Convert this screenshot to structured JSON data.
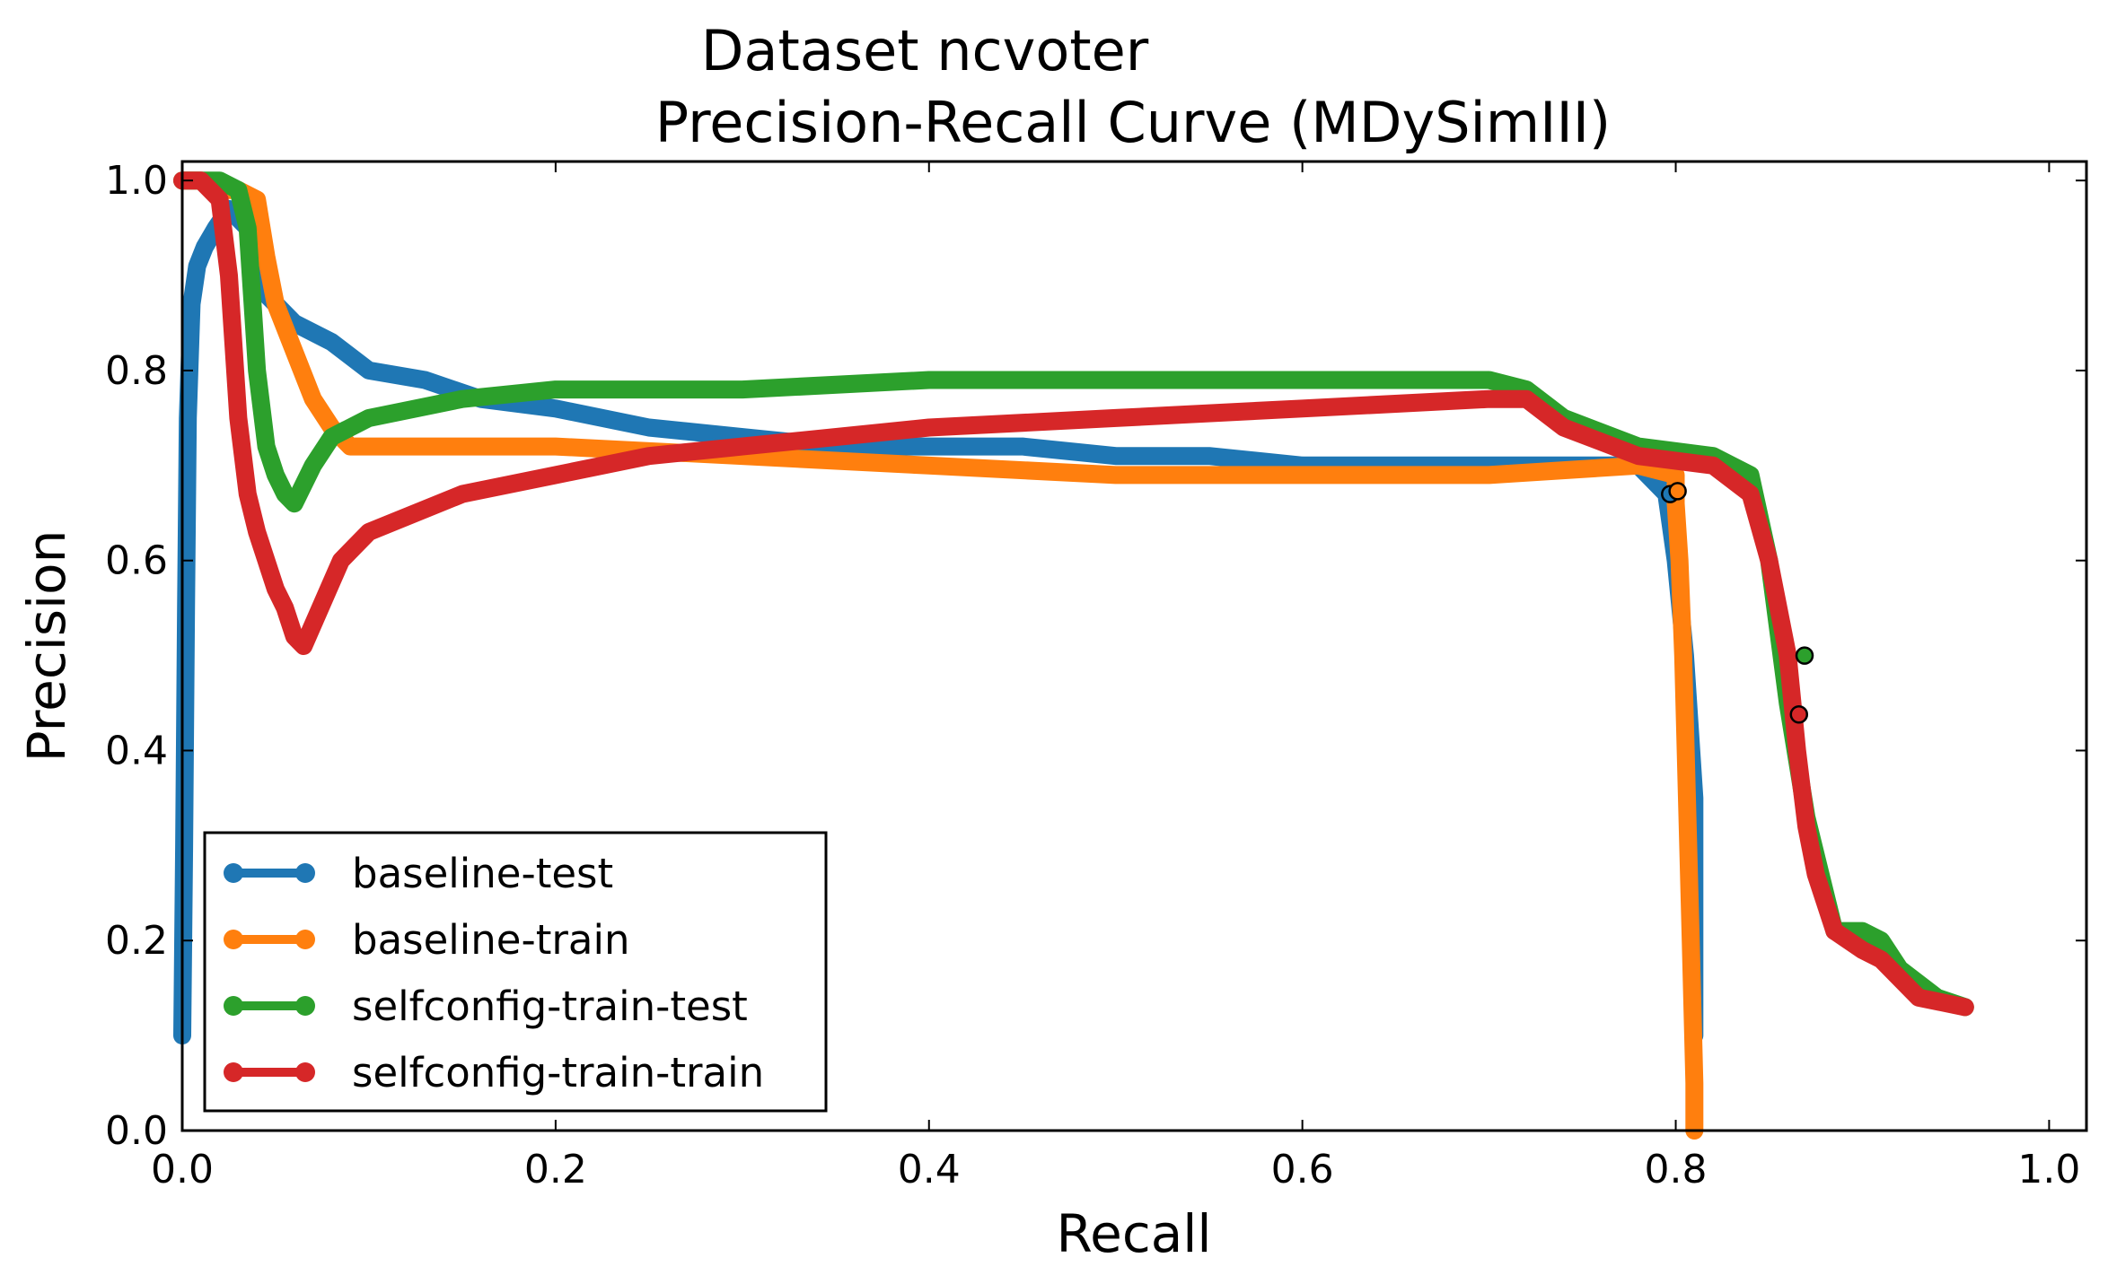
{
  "chart_data": {
    "type": "line",
    "title_line1": "Dataset ncvoter",
    "title_line2": "Precision-Recall Curve (MDySimIII)",
    "xlabel": "Recall",
    "ylabel": "Precision",
    "xlim": [
      0.0,
      1.02
    ],
    "ylim": [
      0.0,
      1.02
    ],
    "x_ticks": [
      "0.0",
      "0.2",
      "0.4",
      "0.6",
      "0.8",
      "1.0"
    ],
    "y_ticks": [
      "0.0",
      "0.2",
      "0.4",
      "0.6",
      "0.8",
      "1.0"
    ],
    "grid": false,
    "legend_position": "lower-left",
    "series": [
      {
        "name": "baseline-test",
        "color": "#1f77b4",
        "x": [
          0.0,
          0.001,
          0.002,
          0.003,
          0.005,
          0.008,
          0.012,
          0.018,
          0.025,
          0.035,
          0.045,
          0.06,
          0.08,
          0.1,
          0.13,
          0.16,
          0.2,
          0.25,
          0.3,
          0.35,
          0.4,
          0.45,
          0.5,
          0.55,
          0.6,
          0.65,
          0.7,
          0.75,
          0.78,
          0.795,
          0.8,
          0.805,
          0.81,
          0.81
        ],
        "y": [
          0.1,
          0.3,
          0.55,
          0.75,
          0.87,
          0.91,
          0.93,
          0.95,
          0.97,
          0.95,
          0.88,
          0.85,
          0.83,
          0.8,
          0.79,
          0.77,
          0.76,
          0.74,
          0.73,
          0.72,
          0.72,
          0.72,
          0.71,
          0.71,
          0.7,
          0.7,
          0.7,
          0.7,
          0.7,
          0.67,
          0.6,
          0.5,
          0.35,
          0.1
        ]
      },
      {
        "name": "baseline-train",
        "color": "#ff7f0e",
        "x": [
          0.0,
          0.01,
          0.02,
          0.03,
          0.04,
          0.045,
          0.05,
          0.06,
          0.07,
          0.08,
          0.09,
          0.1,
          0.15,
          0.2,
          0.3,
          0.4,
          0.5,
          0.6,
          0.7,
          0.78,
          0.8,
          0.8,
          0.802,
          0.804,
          0.806,
          0.808,
          0.81,
          0.81
        ],
        "y": [
          1.0,
          1.0,
          0.99,
          0.99,
          0.98,
          0.92,
          0.87,
          0.82,
          0.77,
          0.74,
          0.72,
          0.72,
          0.72,
          0.72,
          0.71,
          0.7,
          0.69,
          0.69,
          0.69,
          0.7,
          0.69,
          0.66,
          0.6,
          0.5,
          0.35,
          0.2,
          0.05,
          0.0
        ]
      },
      {
        "name": "selfconfig-train-test",
        "color": "#2ca02c",
        "x": [
          0.0,
          0.01,
          0.02,
          0.03,
          0.035,
          0.04,
          0.045,
          0.05,
          0.055,
          0.06,
          0.07,
          0.08,
          0.1,
          0.15,
          0.2,
          0.3,
          0.4,
          0.5,
          0.6,
          0.7,
          0.72,
          0.74,
          0.78,
          0.82,
          0.84,
          0.85,
          0.86,
          0.87,
          0.88,
          0.885,
          0.9,
          0.91,
          0.92,
          0.94,
          0.955
        ],
        "y": [
          1.0,
          1.0,
          1.0,
          0.99,
          0.95,
          0.8,
          0.72,
          0.69,
          0.67,
          0.66,
          0.7,
          0.73,
          0.75,
          0.77,
          0.78,
          0.78,
          0.79,
          0.79,
          0.79,
          0.79,
          0.78,
          0.75,
          0.72,
          0.71,
          0.69,
          0.6,
          0.45,
          0.33,
          0.25,
          0.21,
          0.21,
          0.2,
          0.17,
          0.14,
          0.13
        ]
      },
      {
        "name": "selfconfig-train-train",
        "color": "#d62728",
        "x": [
          0.0,
          0.01,
          0.02,
          0.025,
          0.03,
          0.035,
          0.04,
          0.045,
          0.05,
          0.055,
          0.06,
          0.065,
          0.085,
          0.1,
          0.15,
          0.2,
          0.25,
          0.3,
          0.4,
          0.5,
          0.6,
          0.7,
          0.72,
          0.74,
          0.78,
          0.82,
          0.84,
          0.85,
          0.86,
          0.865,
          0.87,
          0.875,
          0.885,
          0.9,
          0.91,
          0.93,
          0.955
        ],
        "y": [
          1.0,
          1.0,
          0.98,
          0.9,
          0.75,
          0.67,
          0.63,
          0.6,
          0.57,
          0.55,
          0.52,
          0.51,
          0.6,
          0.63,
          0.67,
          0.69,
          0.71,
          0.72,
          0.74,
          0.75,
          0.76,
          0.77,
          0.77,
          0.74,
          0.71,
          0.7,
          0.67,
          0.6,
          0.5,
          0.4,
          0.32,
          0.27,
          0.21,
          0.19,
          0.18,
          0.14,
          0.13
        ]
      }
    ],
    "markers": [
      {
        "color": "#1f77b4",
        "x": 0.797,
        "y": 0.67
      },
      {
        "color": "#ff7f0e",
        "x": 0.801,
        "y": 0.673
      },
      {
        "color": "#2ca02c",
        "x": 0.869,
        "y": 0.5
      },
      {
        "color": "#d62728",
        "x": 0.866,
        "y": 0.438
      }
    ]
  }
}
